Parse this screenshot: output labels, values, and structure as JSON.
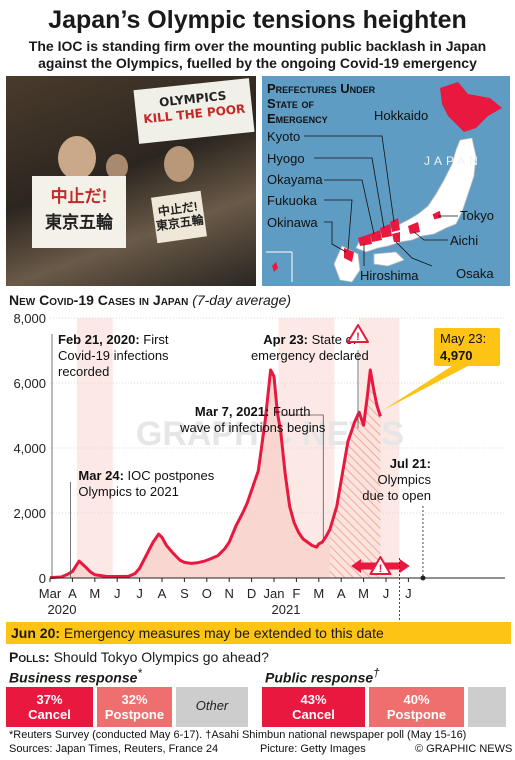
{
  "title": "Japan’s Olympic tensions heighten",
  "subtitle_lines": [
    "The IOC is standing firm over the mounting public backlash in Japan",
    "against the Olympics, fuelled by the ongoing Covid-19 emergency"
  ],
  "photo": {
    "banner_lines": [
      "OLYMPICS",
      "KILL THE POOR"
    ],
    "sign_red": "中止だ!",
    "sign_black": "東京五輪",
    "sign_small_lines": [
      "中止だ!",
      "東京五輪"
    ]
  },
  "map": {
    "title_lines": [
      "Prefectures Under",
      "State of",
      "Emergency"
    ],
    "country_label": "JAPAN",
    "prefectures": [
      "Hokkaido",
      "Kyoto",
      "Hyogo",
      "Okayama",
      "Fukuoka",
      "Okinawa",
      "Hiroshima",
      "Tokyo",
      "Aichi",
      "Osaka"
    ],
    "colors": {
      "sea": "#5f9cc4",
      "land": "#ffffff",
      "emergency": "#e8183e"
    }
  },
  "chart_header": {
    "main": "New Covid-19 Cases in Japan",
    "note": "(7-day average)"
  },
  "chart_data": {
    "type": "area",
    "title": "New Covid-19 Cases in Japan",
    "subtitle": "(7-day average)",
    "ylim": [
      0,
      8000
    ],
    "yticks": [
      0,
      2000,
      4000,
      6000,
      8000
    ],
    "ytick_labels": [
      "0",
      "2,000",
      "4,000",
      "6,000",
      "8,000"
    ],
    "xlim": [
      0,
      17.5
    ],
    "xticks": [
      {
        "pos": 0,
        "label": "Mar"
      },
      {
        "pos": 1,
        "label": "A"
      },
      {
        "pos": 2,
        "label": "M"
      },
      {
        "pos": 3,
        "label": "J"
      },
      {
        "pos": 4,
        "label": "J"
      },
      {
        "pos": 5,
        "label": "A"
      },
      {
        "pos": 6,
        "label": "S"
      },
      {
        "pos": 7,
        "label": "O"
      },
      {
        "pos": 8,
        "label": "N"
      },
      {
        "pos": 9,
        "label": "D"
      },
      {
        "pos": 10,
        "label": "Jan"
      },
      {
        "pos": 11,
        "label": "F"
      },
      {
        "pos": 12,
        "label": "M"
      },
      {
        "pos": 13,
        "label": "A"
      },
      {
        "pos": 14,
        "label": "M"
      },
      {
        "pos": 15,
        "label": "J"
      },
      {
        "pos": 16,
        "label": "J"
      }
    ],
    "xyears": [
      {
        "pos": 0,
        "label": "2020"
      },
      {
        "pos": 10,
        "label": "2021"
      }
    ],
    "series": [
      {
        "name": "",
        "x": [
          0,
          0.5,
          0.8,
          1.0,
          1.3,
          1.6,
          1.8,
          2.0,
          2.5,
          3.0,
          3.5,
          3.8,
          4.0,
          4.3,
          4.6,
          4.85,
          5.0,
          5.2,
          5.5,
          5.8,
          6.0,
          6.3,
          6.6,
          6.9,
          7.2,
          7.5,
          7.8,
          8.0,
          8.3,
          8.6,
          8.8,
          9.0,
          9.3,
          9.6,
          9.85,
          10.0,
          10.15,
          10.3,
          10.5,
          10.7,
          10.9,
          11.1,
          11.3,
          11.5,
          11.7,
          11.9,
          12.0,
          12.15,
          12.3,
          12.5,
          12.8,
          13.0,
          13.3,
          13.6,
          13.8,
          14.0,
          14.15,
          14.3,
          14.45,
          14.6,
          14.75
        ],
        "y": [
          10,
          30,
          120,
          200,
          520,
          330,
          190,
          100,
          50,
          45,
          50,
          140,
          300,
          700,
          1100,
          1350,
          1250,
          1000,
          760,
          550,
          480,
          450,
          470,
          520,
          600,
          690,
          900,
          1100,
          1600,
          2000,
          2300,
          2700,
          3300,
          4800,
          6400,
          6200,
          5100,
          4500,
          3200,
          2200,
          1700,
          1400,
          1200,
          1100,
          1000,
          950,
          1050,
          1100,
          1250,
          1500,
          2200,
          3000,
          4200,
          4800,
          5100,
          4700,
          5500,
          6400,
          5800,
          5300,
          4970
        ]
      }
    ],
    "shaded_periods": [
      {
        "name": "emergency-1",
        "x": [
          1.2,
          2.8
        ],
        "color": "#f9d6d0"
      },
      {
        "name": "emergency-2",
        "x": [
          10.2,
          12.7
        ],
        "color": "#f9d6d0"
      },
      {
        "name": "emergency-3",
        "x": [
          13.8,
          15.6
        ],
        "color": "#f9d6d0"
      }
    ],
    "projection": {
      "x": [
        12.7,
        15.6
      ],
      "pattern": "hatched"
    },
    "colors": {
      "line": "#e8183e",
      "fill": "#f9d6d0",
      "highlight": "#fdc315"
    },
    "annotations": [
      {
        "x": 0,
        "y": 8000,
        "bold": "Feb 21, 2020:",
        "text": "First",
        "lines": [
          "Covid-19 infections",
          "recorded"
        ]
      },
      {
        "x": 1.0,
        "y": 200,
        "bold": "Mar 24:",
        "text": "IOC postpones",
        "lines": [
          "Olympics to 2021"
        ]
      },
      {
        "x": 12.2,
        "y": 1000,
        "bold": "Mar 7, 2021:",
        "text": "Fourth",
        "lines": [
          "wave of infections begins"
        ]
      },
      {
        "x": 13.75,
        "y": 4600,
        "bold": "Apr 23:",
        "text": "State of",
        "lines": [
          "emergency declared"
        ]
      },
      {
        "x": 14.75,
        "y": 4970,
        "bold": "May 23:",
        "text": "",
        "value": "4,970",
        "lines": []
      },
      {
        "x": 16.65,
        "y": 0,
        "bold": "Jul 21:",
        "text": "",
        "lines": [
          "Olympics",
          "due to open"
        ]
      }
    ],
    "watermark": "GRAPHIC NEWS"
  },
  "june_note": {
    "bold": "Jun 20:",
    "text": "Emergency measures may be extended to this date"
  },
  "polls": {
    "label_bold": "Polls:",
    "question": "Should Tokyo Olympics go ahead?",
    "business": {
      "title": "Business response",
      "mark": "*",
      "items": [
        {
          "pct": "37%",
          "label": "Cancel",
          "value": 37,
          "color": "#e8183e"
        },
        {
          "pct": "32%",
          "label": "Postpone",
          "value": 32,
          "color": "#ef6f6f"
        },
        {
          "pct": "",
          "label": "Other",
          "value": 31,
          "color": "#cdcdcd"
        }
      ]
    },
    "public": {
      "title": "Public response",
      "mark": "†",
      "items": [
        {
          "pct": "43%",
          "label": "Cancel",
          "value": 43,
          "color": "#e8183e"
        },
        {
          "pct": "40%",
          "label": "Postpone",
          "value": 40,
          "color": "#ef6f6f"
        },
        {
          "pct": "",
          "label": "",
          "value": 17,
          "color": "#cdcdcd"
        }
      ]
    }
  },
  "footnotes": {
    "survey": "*Reuters Survey (conducted May 6-17). †Asahi Shimbun national newspaper poll (May 15-16)",
    "sources": "Sources: Japan Times, Reuters, France 24",
    "picture": "Picture: Getty Images",
    "credit": "© GRAPHIC NEWS"
  }
}
